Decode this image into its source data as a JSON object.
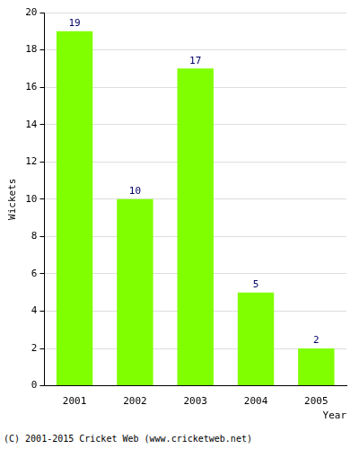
{
  "chart_data": {
    "type": "bar",
    "categories": [
      "2001",
      "2002",
      "2003",
      "2004",
      "2005"
    ],
    "values": [
      19,
      10,
      17,
      5,
      2
    ],
    "color": "#80ff00",
    "xlabel": "Year",
    "ylabel": "Wickets",
    "ylim": [
      0,
      20
    ],
    "yticks": [
      0,
      2,
      4,
      6,
      8,
      10,
      12,
      14,
      16,
      18,
      20
    ],
    "grid": true,
    "data_labels": true,
    "annotations": [
      "(C) 2001-2015 Cricket Web (www.cricketweb.net)"
    ]
  }
}
